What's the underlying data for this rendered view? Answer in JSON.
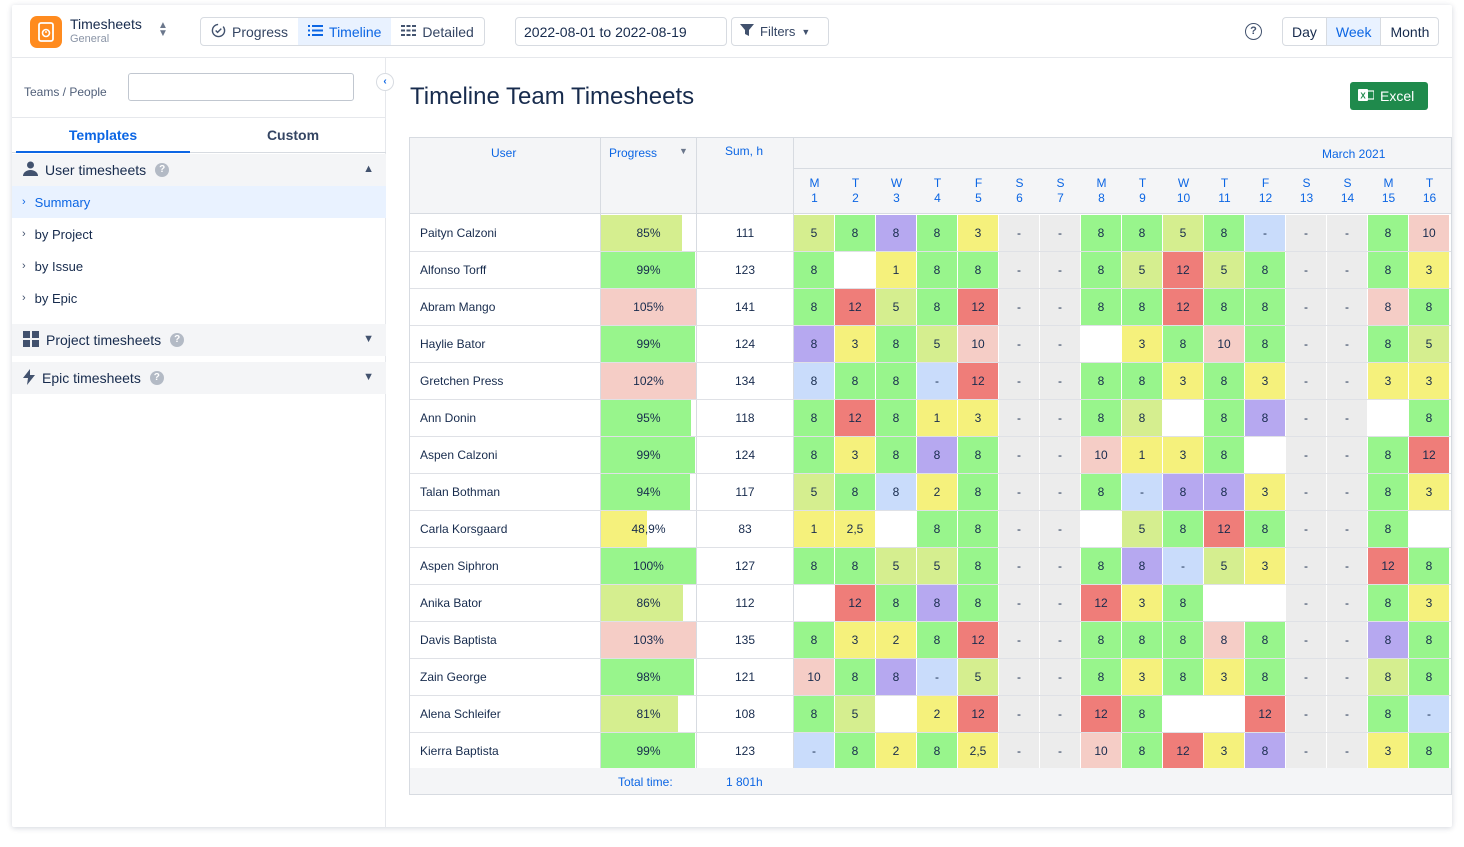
{
  "header": {
    "app_title": "Timesheets",
    "app_subtitle": "General",
    "views": [
      {
        "label": "Progress",
        "icon": "progress-icon",
        "active": false
      },
      {
        "label": "Timeline",
        "icon": "list-icon",
        "active": true
      },
      {
        "label": "Detailed",
        "icon": "grid-icon",
        "active": false
      }
    ],
    "date_range": "2022-08-01 to 2022-08-19",
    "filters_label": "Filters",
    "periods": [
      {
        "label": "Day",
        "active": false
      },
      {
        "label": "Week",
        "active": true
      },
      {
        "label": "Month",
        "active": false
      }
    ]
  },
  "sidebar": {
    "teams_label": "Teams / People",
    "teams_input_value": "",
    "tabs": [
      {
        "label": "Templates",
        "active": true
      },
      {
        "label": "Custom",
        "active": false
      }
    ],
    "user_section": {
      "label": "User timesheets",
      "expanded": true
    },
    "user_items": [
      {
        "label": "Summary",
        "active": true
      },
      {
        "label": "by Project",
        "active": false
      },
      {
        "label": "by Issue",
        "active": false
      },
      {
        "label": "by Epic",
        "active": false
      }
    ],
    "project_section": {
      "label": "Project timesheets"
    },
    "epic_section": {
      "label": "Epic timesheets"
    }
  },
  "main": {
    "title": "Timeline Team Timesheets",
    "excel_label": "Excel",
    "columns": {
      "user": "User",
      "progress": "Progress",
      "sum": "Sum, h"
    },
    "month_label": "March 2021",
    "days": [
      {
        "wd": "M",
        "d": "1"
      },
      {
        "wd": "T",
        "d": "2"
      },
      {
        "wd": "W",
        "d": "3"
      },
      {
        "wd": "T",
        "d": "4"
      },
      {
        "wd": "F",
        "d": "5"
      },
      {
        "wd": "S",
        "d": "6"
      },
      {
        "wd": "S",
        "d": "7"
      },
      {
        "wd": "M",
        "d": "8"
      },
      {
        "wd": "T",
        "d": "9"
      },
      {
        "wd": "W",
        "d": "10"
      },
      {
        "wd": "T",
        "d": "11"
      },
      {
        "wd": "F",
        "d": "12"
      },
      {
        "wd": "S",
        "d": "13"
      },
      {
        "wd": "S",
        "d": "14"
      },
      {
        "wd": "M",
        "d": "15"
      },
      {
        "wd": "T",
        "d": "16"
      }
    ],
    "rows": [
      {
        "user": "Paityn Calzoni",
        "progress": "85%",
        "progress_value": 0.85,
        "sum": "111",
        "cells": [
          "5",
          "8",
          "8",
          "8",
          "3",
          "-",
          "-",
          "8",
          "8",
          "5",
          "8",
          "-",
          "-",
          "-",
          "8",
          "10"
        ],
        "colors": [
          "ly",
          "g",
          "p",
          "g",
          "y",
          "w",
          "w",
          "g",
          "g",
          "ly",
          "g",
          "b",
          "w",
          "w",
          "g",
          "pk"
        ]
      },
      {
        "user": "Alfonso Torff",
        "progress": "99%",
        "progress_value": 0.99,
        "sum": "123",
        "cells": [
          "8",
          "",
          "1",
          "8",
          "8",
          "-",
          "-",
          "8",
          "5",
          "12",
          "5",
          "8",
          "-",
          "-",
          "8",
          "3"
        ],
        "colors": [
          "g",
          "n",
          "y",
          "g",
          "g",
          "w",
          "w",
          "g",
          "ly",
          "r",
          "ly",
          "g",
          "w",
          "w",
          "g",
          "y"
        ]
      },
      {
        "user": "Abram Mango",
        "progress": "105%",
        "progress_value": 1.05,
        "sum": "141",
        "cells": [
          "8",
          "12",
          "5",
          "8",
          "12",
          "-",
          "-",
          "8",
          "8",
          "12",
          "8",
          "8",
          "-",
          "-",
          "8",
          "8"
        ],
        "colors": [
          "g",
          "r",
          "ly",
          "g",
          "r",
          "w",
          "w",
          "g",
          "g",
          "r",
          "g",
          "g",
          "w",
          "w",
          "pk",
          "g"
        ]
      },
      {
        "user": "Haylie Bator",
        "progress": "99%",
        "progress_value": 0.99,
        "sum": "124",
        "cells": [
          "8",
          "3",
          "8",
          "5",
          "10",
          "-",
          "-",
          "",
          "3",
          "8",
          "10",
          "8",
          "-",
          "-",
          "8",
          "5"
        ],
        "colors": [
          "p",
          "y",
          "g",
          "ly",
          "pk",
          "w",
          "w",
          "n",
          "y",
          "g",
          "pk",
          "g",
          "w",
          "w",
          "g",
          "ly"
        ]
      },
      {
        "user": "Gretchen Press",
        "progress": "102%",
        "progress_value": 1.02,
        "sum": "134",
        "cells": [
          "8",
          "8",
          "8",
          "-",
          "12",
          "-",
          "-",
          "8",
          "8",
          "3",
          "8",
          "3",
          "-",
          "-",
          "3",
          "3"
        ],
        "colors": [
          "b",
          "g",
          "g",
          "b",
          "r",
          "w",
          "w",
          "g",
          "g",
          "y",
          "g",
          "y",
          "w",
          "w",
          "y",
          "y"
        ]
      },
      {
        "user": "Ann Donin",
        "progress": "95%",
        "progress_value": 0.95,
        "sum": "118",
        "cells": [
          "8",
          "12",
          "8",
          "1",
          "3",
          "-",
          "-",
          "8",
          "8",
          "",
          "8",
          "8",
          "-",
          "-",
          "",
          "8"
        ],
        "colors": [
          "g",
          "r",
          "g",
          "y",
          "y",
          "w",
          "w",
          "g",
          "ly",
          "n",
          "g",
          "p",
          "w",
          "w",
          "n",
          "g"
        ]
      },
      {
        "user": "Aspen Calzoni",
        "progress": "99%",
        "progress_value": 0.99,
        "sum": "124",
        "cells": [
          "8",
          "3",
          "8",
          "8",
          "8",
          "-",
          "-",
          "10",
          "1",
          "3",
          "8",
          "",
          "-",
          "-",
          "8",
          "12"
        ],
        "colors": [
          "g",
          "y",
          "g",
          "p",
          "g",
          "w",
          "w",
          "pk",
          "y",
          "y",
          "g",
          "n",
          "w",
          "w",
          "g",
          "r"
        ]
      },
      {
        "user": "Talan Bothman",
        "progress": "94%",
        "progress_value": 0.94,
        "sum": "117",
        "cells": [
          "5",
          "8",
          "8",
          "2",
          "8",
          "-",
          "-",
          "8",
          "-",
          "8",
          "8",
          "3",
          "-",
          "-",
          "8",
          "3"
        ],
        "colors": [
          "ly",
          "g",
          "b",
          "y",
          "g",
          "w",
          "w",
          "g",
          "b",
          "p",
          "p",
          "y",
          "w",
          "w",
          "g",
          "y"
        ]
      },
      {
        "user": "Carla Korsgaard",
        "progress": "48,9%",
        "progress_value": 0.489,
        "sum": "83",
        "cells": [
          "1",
          "2,5",
          "",
          "8",
          "8",
          "-",
          "-",
          "",
          "5",
          "8",
          "12",
          "8",
          "-",
          "-",
          "8",
          ""
        ],
        "colors": [
          "y",
          "y",
          "n",
          "g",
          "g",
          "w",
          "w",
          "n",
          "ly",
          "g",
          "r",
          "g",
          "w",
          "w",
          "g",
          "n"
        ]
      },
      {
        "user": "Aspen Siphron",
        "progress": "100%",
        "progress_value": 1.0,
        "sum": "127",
        "cells": [
          "8",
          "8",
          "5",
          "5",
          "8",
          "-",
          "-",
          "8",
          "8",
          "-",
          "5",
          "3",
          "-",
          "-",
          "12",
          "8"
        ],
        "colors": [
          "g",
          "g",
          "ly",
          "ly",
          "g",
          "w",
          "w",
          "g",
          "p",
          "b",
          "ly",
          "y",
          "w",
          "w",
          "r",
          "g"
        ]
      },
      {
        "user": "Anika Bator",
        "progress": "86%",
        "progress_value": 0.86,
        "sum": "112",
        "cells": [
          "",
          "12",
          "8",
          "8",
          "8",
          "-",
          "-",
          "12",
          "3",
          "8",
          "",
          "",
          "-",
          "-",
          "8",
          "3"
        ],
        "colors": [
          "n",
          "r",
          "g",
          "p",
          "g",
          "w",
          "w",
          "r",
          "y",
          "g",
          "n",
          "n",
          "w",
          "w",
          "g",
          "y"
        ]
      },
      {
        "user": "Davis Baptista",
        "progress": "103%",
        "progress_value": 1.03,
        "sum": "135",
        "cells": [
          "8",
          "3",
          "2",
          "8",
          "12",
          "-",
          "-",
          "8",
          "8",
          "8",
          "8",
          "8",
          "-",
          "-",
          "8",
          "8"
        ],
        "colors": [
          "g",
          "y",
          "y",
          "g",
          "r",
          "w",
          "w",
          "g",
          "g",
          "g",
          "pk",
          "g",
          "w",
          "w",
          "p",
          "g"
        ]
      },
      {
        "user": "Zain George",
        "progress": "98%",
        "progress_value": 0.98,
        "sum": "121",
        "cells": [
          "10",
          "8",
          "8",
          "-",
          "5",
          "-",
          "-",
          "8",
          "3",
          "8",
          "3",
          "8",
          "-",
          "-",
          "8",
          "8"
        ],
        "colors": [
          "pk",
          "g",
          "p",
          "b",
          "ly",
          "w",
          "w",
          "g",
          "y",
          "g",
          "y",
          "g",
          "w",
          "w",
          "ly",
          "g"
        ]
      },
      {
        "user": "Alena Schleifer",
        "progress": "81%",
        "progress_value": 0.81,
        "sum": "108",
        "cells": [
          "8",
          "5",
          "",
          "2",
          "12",
          "-",
          "-",
          "12",
          "8",
          "",
          "",
          "12",
          "-",
          "-",
          "8",
          "-"
        ],
        "colors": [
          "g",
          "ly",
          "n",
          "y",
          "r",
          "w",
          "w",
          "r",
          "g",
          "n",
          "n",
          "r",
          "w",
          "w",
          "g",
          "b"
        ]
      },
      {
        "user": "Kierra Baptista",
        "progress": "99%",
        "progress_value": 0.99,
        "sum": "123",
        "cells": [
          "-",
          "8",
          "2",
          "8",
          "2,5",
          "-",
          "-",
          "10",
          "8",
          "12",
          "3",
          "8",
          "-",
          "-",
          "3",
          "8"
        ],
        "colors": [
          "b",
          "g",
          "y",
          "g",
          "y",
          "w",
          "w",
          "pk",
          "g",
          "r",
          "y",
          "p",
          "w",
          "w",
          "y",
          "g"
        ]
      }
    ],
    "total_label": "Total time:",
    "total_value": "1 801h"
  },
  "palette": {
    "g": "#98f58c",
    "ly": "#d5ee8f",
    "y": "#f5f17c",
    "p": "#b6a8f0",
    "b": "#c9dcfb",
    "r": "#ef7d79",
    "pk": "#f5cdc6",
    "w": "#ececec",
    "n": "#ffffff",
    "prog_green": "#98f58c",
    "prog_lime": "#d5ee8f",
    "prog_pink": "#f5cdc6",
    "prog_yellow": "#f5f17c",
    "accent": "#0c66e4",
    "excel": "#1f8a4c"
  }
}
